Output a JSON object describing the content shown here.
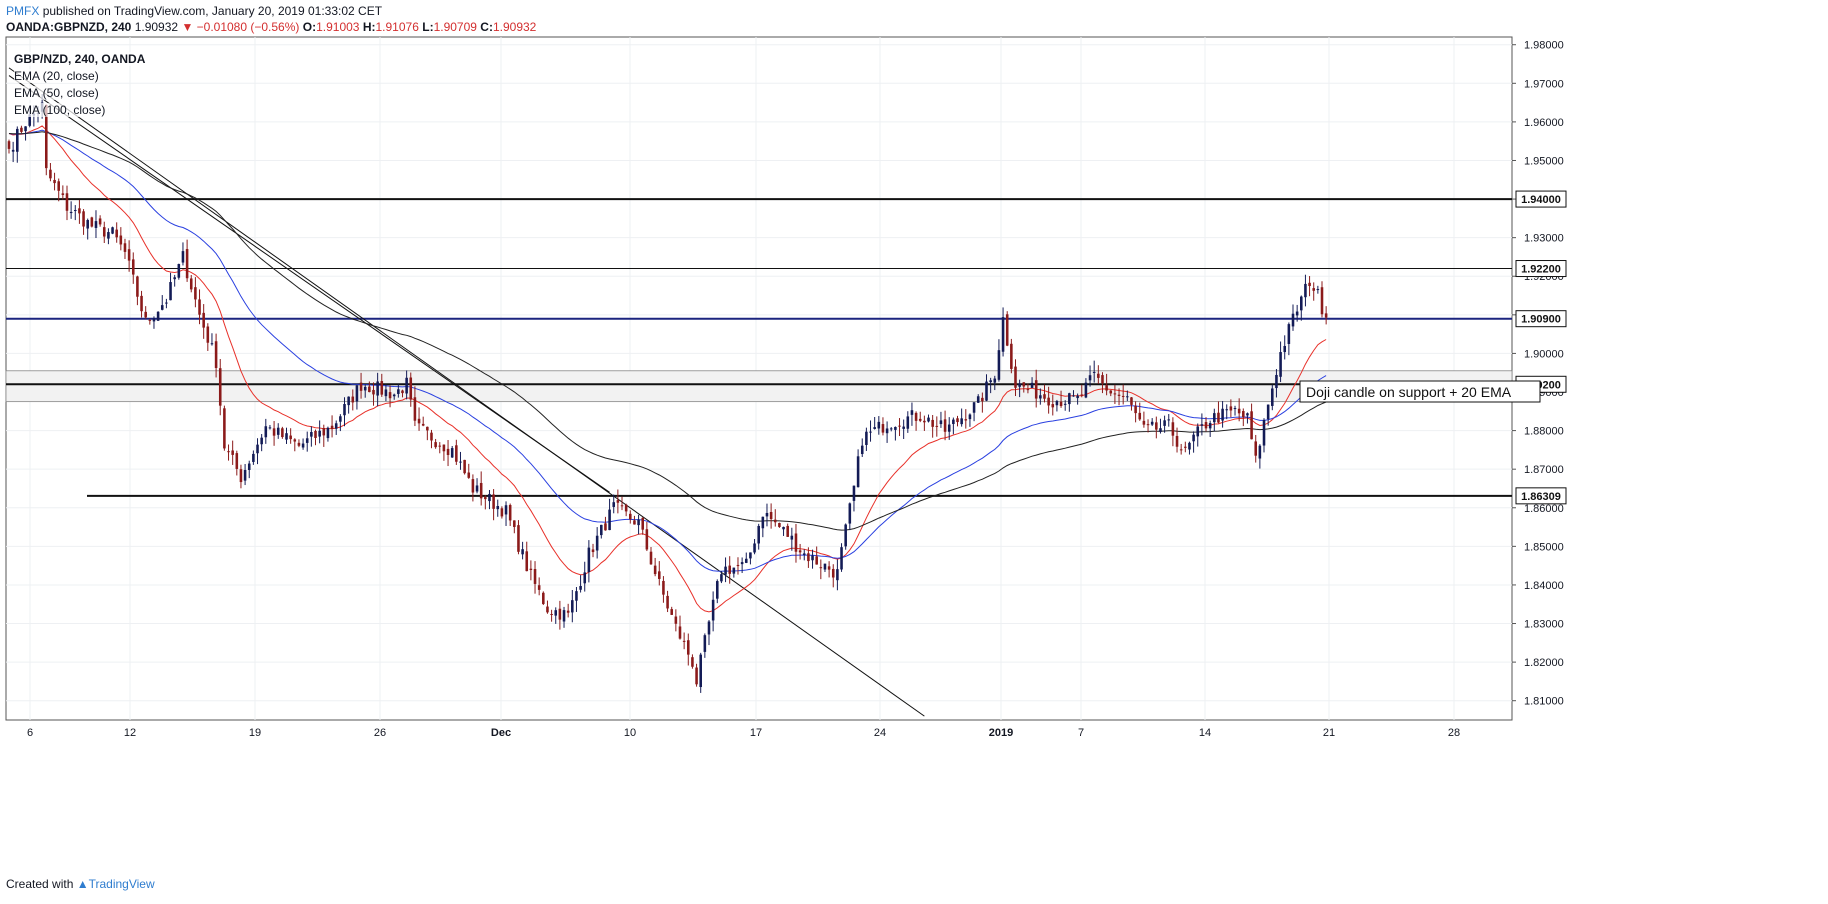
{
  "header": {
    "brand": "PMFX",
    "published_text": "published on TradingView.com, January 20, 2019 01:33:02 CET",
    "symbol": "OANDA:GBPNZD, 240",
    "last": "1.90932",
    "change": "▼ −0.01080 (−0.56%)",
    "o_label": "O:",
    "o": "1.91003",
    "h_label": "H:",
    "h": "1.91076",
    "l_label": "L:",
    "l": "1.90709",
    "c_label": "C:",
    "c": "1.90932"
  },
  "legend": {
    "title": "GBP/NZD, 240, OANDA",
    "ema20": "EMA (20, close)",
    "ema50": "EMA (50, close)",
    "ema100": "EMA (100, close)"
  },
  "footer": {
    "created_with": "Created with",
    "brand": "TradingView"
  },
  "colors": {
    "up": "#131b56",
    "down": "#8b1a1a",
    "ema20": "#e8312a",
    "ema50": "#2a40e0",
    "ema100": "#222222",
    "brand": "#2f7dcf"
  },
  "chart_data": {
    "type": "candlestick",
    "instrument": "GBP/NZD",
    "timeframe": "240",
    "y_axis": {
      "min": 1.805,
      "max": 1.982,
      "ticks": [
        "1.98000",
        "1.97000",
        "1.96000",
        "1.95000",
        "1.94000",
        "1.93000",
        "1.92000",
        "1.91000",
        "1.90000",
        "1.89000",
        "1.88000",
        "1.87000",
        "1.86000",
        "1.85000",
        "1.84000",
        "1.83000",
        "1.82000",
        "1.81000"
      ]
    },
    "x_axis": {
      "labels": [
        "6",
        "12",
        "19",
        "26",
        "Dec",
        "10",
        "17",
        "24",
        "2019",
        "7",
        "14",
        "21",
        "28"
      ],
      "bold_labels": [
        "Dec",
        "2019"
      ]
    },
    "horizontal_levels": [
      {
        "label": "1.94000",
        "value": 1.94,
        "weight": "thick"
      },
      {
        "label": "1.92200",
        "value": 1.922,
        "weight": "thin"
      },
      {
        "label": "1.90900",
        "value": 1.909,
        "weight": "thick",
        "color": "#1a237e"
      },
      {
        "label": "1.89200",
        "value": 1.892,
        "weight": "thick"
      },
      {
        "label": "1.86309",
        "value": 1.86309,
        "weight": "thick"
      }
    ],
    "support_zone": [
      1.8875,
      1.8955
    ],
    "annotation": "Doji candle on support + 20 EMA",
    "candle_count": 318,
    "anchors": [
      [
        0,
        1.953
      ],
      [
        4,
        1.96
      ],
      [
        8,
        1.964
      ],
      [
        9,
        1.947
      ],
      [
        14,
        1.938
      ],
      [
        20,
        1.933
      ],
      [
        25,
        1.931
      ],
      [
        28,
        1.926
      ],
      [
        33,
        1.908
      ],
      [
        38,
        1.914
      ],
      [
        42,
        1.925
      ],
      [
        46,
        1.91
      ],
      [
        50,
        1.898
      ],
      [
        52,
        1.876
      ],
      [
        56,
        1.868
      ],
      [
        62,
        1.881
      ],
      [
        70,
        1.876
      ],
      [
        78,
        1.881
      ],
      [
        85,
        1.892
      ],
      [
        93,
        1.8895
      ],
      [
        96,
        1.892
      ],
      [
        98,
        1.881
      ],
      [
        107,
        1.875
      ],
      [
        112,
        1.865
      ],
      [
        120,
        1.859
      ],
      [
        126,
        1.842
      ],
      [
        130,
        1.834
      ],
      [
        135,
        1.832
      ],
      [
        140,
        1.848
      ],
      [
        146,
        1.86
      ],
      [
        152,
        1.856
      ],
      [
        157,
        1.84
      ],
      [
        161,
        1.829
      ],
      [
        165,
        1.82
      ],
      [
        166,
        1.815
      ],
      [
        169,
        1.83
      ],
      [
        172,
        1.844
      ],
      [
        178,
        1.845
      ],
      [
        182,
        1.859
      ],
      [
        188,
        1.853
      ],
      [
        192,
        1.848
      ],
      [
        200,
        1.843
      ],
      [
        204,
        1.865
      ],
      [
        206,
        1.878
      ],
      [
        212,
        1.882
      ],
      [
        220,
        1.884
      ],
      [
        226,
        1.88
      ],
      [
        234,
        1.887
      ],
      [
        238,
        1.895
      ],
      [
        240,
        1.909
      ],
      [
        243,
        1.892
      ],
      [
        248,
        1.89
      ],
      [
        252,
        1.888
      ],
      [
        258,
        1.888
      ],
      [
        262,
        1.894
      ],
      [
        266,
        1.89
      ],
      [
        270,
        1.888
      ],
      [
        274,
        1.88
      ],
      [
        280,
        1.881
      ],
      [
        284,
        1.874
      ],
      [
        286,
        1.878
      ],
      [
        290,
        1.883
      ],
      [
        296,
        1.885
      ],
      [
        299,
        1.883
      ],
      [
        301,
        1.872
      ],
      [
        304,
        1.887
      ],
      [
        307,
        1.9
      ],
      [
        310,
        1.909
      ],
      [
        314,
        1.919
      ],
      [
        316,
        1.915
      ],
      [
        318,
        1.9093
      ]
    ],
    "ema_endpoints": {
      "ema20": 1.9066,
      "ema50": 1.8962,
      "ema100": 1.8899
    },
    "trendlines": [
      {
        "from": [
          0,
          1.974
        ],
        "to": [
          221,
          1.806
        ]
      },
      {
        "from": [
          0,
          1.972
        ],
        "to": [
          145,
          1.864
        ]
      }
    ]
  }
}
